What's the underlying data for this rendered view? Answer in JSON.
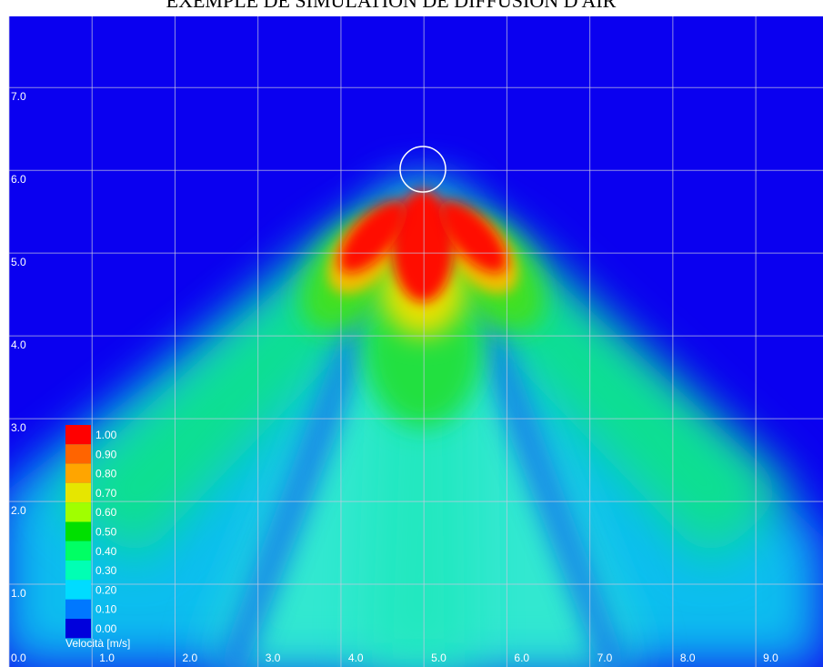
{
  "chart_data": {
    "type": "heatmap",
    "title": "EXEMPLE DE SIMULATION DE DIFFUSION D'AIR",
    "xlim": [
      0,
      9.81
    ],
    "ylim": [
      0,
      7.86
    ],
    "xticks": [
      {
        "value": 0,
        "label": "0.0"
      },
      {
        "value": 1,
        "label": "1.0"
      },
      {
        "value": 2,
        "label": "2.0"
      },
      {
        "value": 3,
        "label": "3.0"
      },
      {
        "value": 4,
        "label": "4.0"
      },
      {
        "value": 5,
        "label": "5.0"
      },
      {
        "value": 6,
        "label": "6.0"
      },
      {
        "value": 7,
        "label": "7.0"
      },
      {
        "value": 8,
        "label": "8.0"
      },
      {
        "value": 9,
        "label": "9.0"
      }
    ],
    "yticks": [
      {
        "value": 1,
        "label": "1.0"
      },
      {
        "value": 2,
        "label": "2.0"
      },
      {
        "value": 3,
        "label": "3.0"
      },
      {
        "value": 4,
        "label": "4.0"
      },
      {
        "value": 5,
        "label": "5.0"
      },
      {
        "value": 6,
        "label": "6.0"
      },
      {
        "value": 7,
        "label": "7.0"
      }
    ],
    "grid": true,
    "colorbar": {
      "title": "Velocità [m/s]",
      "levels": [
        {
          "value": 1,
          "label": "1.00"
        },
        {
          "value": 0.9,
          "label": "0.90"
        },
        {
          "value": 0.8,
          "label": "0.80"
        },
        {
          "value": 0.7,
          "label": "0.70"
        },
        {
          "value": 0.6,
          "label": "0.60"
        },
        {
          "value": 0.5,
          "label": "0.50"
        },
        {
          "value": 0.4,
          "label": "0.40"
        },
        {
          "value": 0.3,
          "label": "0.30"
        },
        {
          "value": 0.2,
          "label": "0.20"
        },
        {
          "value": 0.1,
          "label": "0.10"
        },
        {
          "value": 0,
          "label": "0.00"
        }
      ],
      "colors": [
        "#ff0000",
        "#ff6400",
        "#ffa500",
        "#e6e600",
        "#a0ff00",
        "#00e000",
        "#00ff64",
        "#00ffb4",
        "#00dcff",
        "#0078ff",
        "#0000dc"
      ]
    }
  }
}
